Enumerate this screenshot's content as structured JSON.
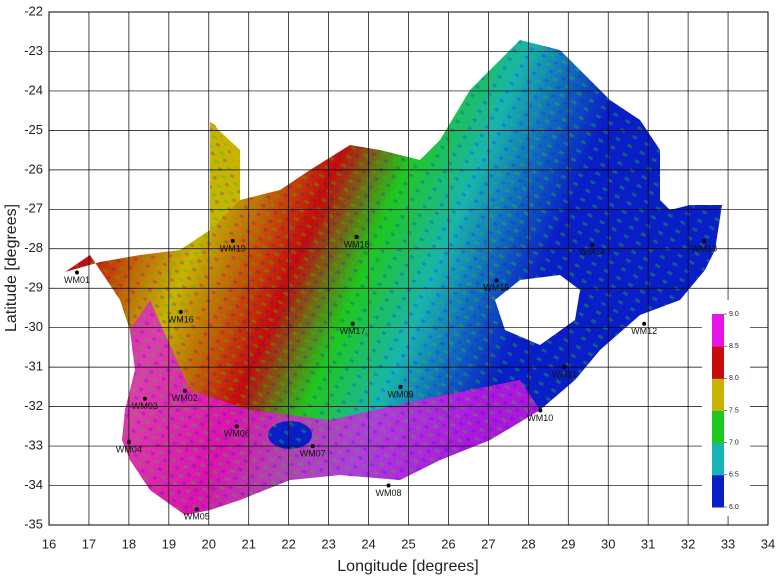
{
  "chart_data": {
    "type": "map",
    "xlabel": "Longitude [degrees]",
    "ylabel": "Latitude [degrees]",
    "xlim": [
      16,
      34
    ],
    "ylim": [
      -35,
      -22
    ],
    "xticks": [
      16,
      17,
      18,
      19,
      20,
      21,
      22,
      23,
      24,
      25,
      26,
      27,
      28,
      29,
      30,
      31,
      32,
      33,
      34
    ],
    "yticks": [
      -35,
      -34,
      -33,
      -32,
      -31,
      -30,
      -29,
      -28,
      -27,
      -26,
      -25,
      -24,
      -23,
      -22
    ],
    "grid": true,
    "stations": [
      {
        "name": "WM01",
        "lon": 16.7,
        "lat": -28.6
      },
      {
        "name": "WM02",
        "lon": 19.4,
        "lat": -31.6
      },
      {
        "name": "WM03",
        "lon": 18.4,
        "lat": -31.8
      },
      {
        "name": "WM04",
        "lon": 18.0,
        "lat": -32.9
      },
      {
        "name": "WM05",
        "lon": 19.7,
        "lat": -34.6
      },
      {
        "name": "WM06",
        "lon": 20.7,
        "lat": -32.5
      },
      {
        "name": "WM07",
        "lon": 22.6,
        "lat": -33.0
      },
      {
        "name": "WM08",
        "lon": 24.5,
        "lat": -34.0
      },
      {
        "name": "WM09",
        "lon": 24.8,
        "lat": -31.5
      },
      {
        "name": "WM10",
        "lon": 28.3,
        "lat": -32.1
      },
      {
        "name": "WM11",
        "lon": 28.9,
        "lat": -31.0
      },
      {
        "name": "WM12",
        "lon": 30.9,
        "lat": -29.9
      },
      {
        "name": "WM13",
        "lon": 32.4,
        "lat": -27.8
      },
      {
        "name": "WM14",
        "lon": 29.6,
        "lat": -27.9
      },
      {
        "name": "WM15",
        "lon": 27.2,
        "lat": -28.8
      },
      {
        "name": "WM16",
        "lon": 19.3,
        "lat": -29.6
      },
      {
        "name": "WM17",
        "lon": 23.6,
        "lat": -29.9
      },
      {
        "name": "WM18",
        "lon": 23.7,
        "lat": -27.7
      },
      {
        "name": "WM19",
        "lon": 20.6,
        "lat": -27.8
      }
    ],
    "colorbar": {
      "ticks": [
        {
          "value": 6,
          "label": "6.0"
        },
        {
          "value": 6.5,
          "label": "6.5"
        },
        {
          "value": 7,
          "label": "7.0"
        },
        {
          "value": 7.5,
          "label": "7.5"
        },
        {
          "value": 8,
          "label": "8.0"
        },
        {
          "value": 8.5,
          "label": "8.5"
        },
        {
          "value": 9,
          "label": "9.0"
        }
      ],
      "lim": [
        6,
        9
      ],
      "colors": [
        "#0a1ec8",
        "#18b4b4",
        "#1ec81e",
        "#c8b400",
        "#c80a0a",
        "#e614e6"
      ]
    }
  }
}
